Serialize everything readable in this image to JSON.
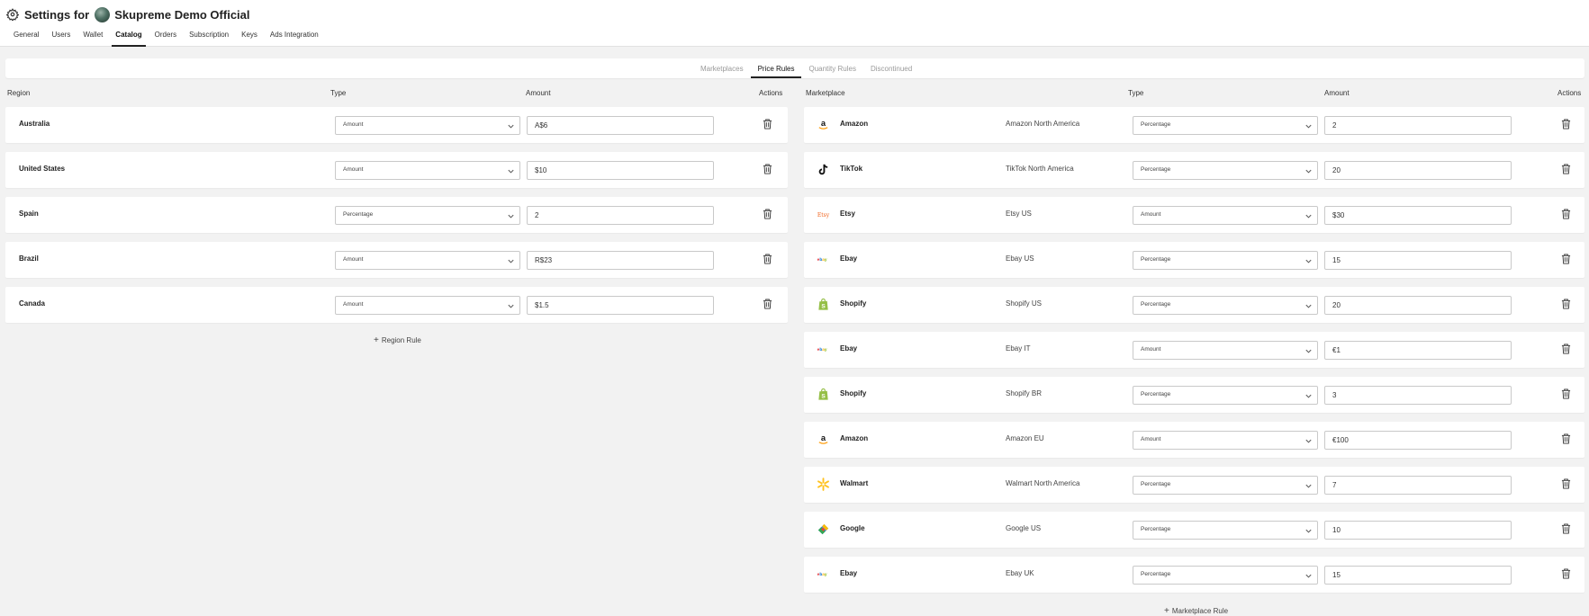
{
  "header": {
    "title_prefix": "Settings for",
    "account_name": "Skupreme Demo Official"
  },
  "nav": {
    "tabs": [
      "General",
      "Users",
      "Wallet",
      "Catalog",
      "Orders",
      "Subscription",
      "Keys",
      "Ads Integration"
    ],
    "active": "Catalog"
  },
  "subtabs": {
    "tabs": [
      "Marketplaces",
      "Price Rules",
      "Quantity Rules",
      "Discontinued"
    ],
    "active": "Price Rules"
  },
  "region_table": {
    "headers": {
      "region": "Region",
      "type": "Type",
      "amount": "Amount",
      "actions": "Actions"
    },
    "rows": [
      {
        "region": "Australia",
        "type": "Amount",
        "amount": "A$6"
      },
      {
        "region": "United States",
        "type": "Amount",
        "amount": "$10"
      },
      {
        "region": "Spain",
        "type": "Percentage",
        "amount": "2"
      },
      {
        "region": "Brazil",
        "type": "Amount",
        "amount": "R$23"
      },
      {
        "region": "Canada",
        "type": "Amount",
        "amount": "$1.5"
      }
    ],
    "add_label": "Region Rule"
  },
  "marketplace_table": {
    "headers": {
      "marketplace": "Marketplace",
      "type": "Type",
      "amount": "Amount",
      "actions": "Actions"
    },
    "rows": [
      {
        "logo": "amazon-logo-icon",
        "marketplace": "Amazon",
        "store": "Amazon North America",
        "type": "Percentage",
        "amount": "2"
      },
      {
        "logo": "tiktok-logo-icon",
        "marketplace": "TikTok",
        "store": "TikTok North America",
        "type": "Percentage",
        "amount": "20"
      },
      {
        "logo": "etsy-logo-icon",
        "marketplace": "Etsy",
        "store": "Etsy US",
        "type": "Amount",
        "amount": "$30"
      },
      {
        "logo": "ebay-logo-icon",
        "marketplace": "Ebay",
        "store": "Ebay US",
        "type": "Percentage",
        "amount": "15"
      },
      {
        "logo": "shopify-logo-icon",
        "marketplace": "Shopify",
        "store": "Shopify US",
        "type": "Percentage",
        "amount": "20"
      },
      {
        "logo": "ebay-logo-icon",
        "marketplace": "Ebay",
        "store": "Ebay IT",
        "type": "Amount",
        "amount": "€1"
      },
      {
        "logo": "shopify-logo-icon",
        "marketplace": "Shopify",
        "store": "Shopify BR",
        "type": "Percentage",
        "amount": "3"
      },
      {
        "logo": "amazon-logo-icon",
        "marketplace": "Amazon",
        "store": "Amazon EU",
        "type": "Amount",
        "amount": "€100"
      },
      {
        "logo": "walmart-logo-icon",
        "marketplace": "Walmart",
        "store": "Walmart North America",
        "type": "Percentage",
        "amount": "7"
      },
      {
        "logo": "google-logo-icon",
        "marketplace": "Google",
        "store": "Google US",
        "type": "Percentage",
        "amount": "10"
      },
      {
        "logo": "ebay-logo-icon",
        "marketplace": "Ebay",
        "store": "Ebay UK",
        "type": "Percentage",
        "amount": "15"
      }
    ],
    "add_label": "Marketplace Rule"
  },
  "colors": {
    "amazon_arrow": "#ff9900",
    "etsy": "#f1641e",
    "shopify": "#95bf47",
    "walmart": "#ffc220",
    "ebay_red": "#e53238",
    "ebay_blue": "#0064d2",
    "ebay_yellow": "#f5af02",
    "ebay_green": "#86b817"
  }
}
